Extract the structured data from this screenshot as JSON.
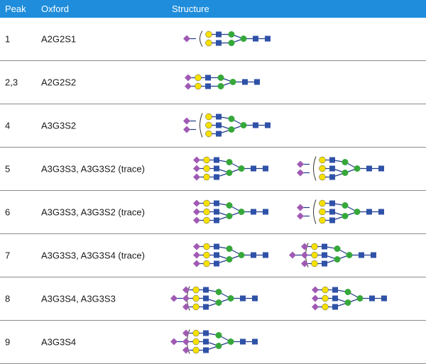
{
  "header": {
    "peak": "Peak",
    "oxford": "Oxford",
    "structure": "Structure"
  },
  "colors": {
    "header_bg": "#1f8ddb",
    "sialic_acid": "#a05ab4",
    "galactose": "#f5e000",
    "glcnac": "#2f52a8",
    "mannose": "#36a83a",
    "divider": "#8c8c8c"
  },
  "legend_icons": [
    "diamond-sialic-acid",
    "circle-galactose",
    "square-glcnac",
    "circle-mannose"
  ],
  "rows": [
    {
      "peak": "1",
      "oxford": "A2G2S1",
      "structures": [
        {
          "antennae": 2,
          "diamonds": [
            false,
            false
          ],
          "floating": true
        }
      ]
    },
    {
      "peak": "2,3",
      "oxford": "A2G2S2",
      "structures": [
        {
          "antennae": 2,
          "diamonds": [
            true,
            true
          ],
          "floating": false
        }
      ]
    },
    {
      "peak": "4",
      "oxford": "A3G3S2",
      "structures": [
        {
          "antennae": 3,
          "diamonds": [
            false,
            false,
            false
          ],
          "floating": 2
        }
      ]
    },
    {
      "peak": "5",
      "oxford": "A3G3S3, A3G3S2 (trace)",
      "structures": [
        {
          "antennae": 3,
          "diamonds": [
            true,
            true,
            true
          ],
          "floating": false
        },
        {
          "antennae": 3,
          "diamonds": [
            false,
            false,
            false
          ],
          "floating": 2
        }
      ]
    },
    {
      "peak": "6",
      "oxford": "A3G3S3, A3G3S2 (trace)",
      "structures": [
        {
          "antennae": 3,
          "diamonds": [
            true,
            true,
            true
          ],
          "floating": false
        },
        {
          "antennae": 3,
          "diamonds": [
            false,
            false,
            false
          ],
          "floating": 2
        }
      ]
    },
    {
      "peak": "7",
      "oxford": "A3G3S3, A3G3S4 (trace)",
      "structures": [
        {
          "antennae": 3,
          "diamonds": [
            true,
            true,
            true
          ],
          "floating": false
        },
        {
          "antennae": 3,
          "diamonds": [
            true,
            true,
            true
          ],
          "floating": 1
        }
      ]
    },
    {
      "peak": "8",
      "oxford": "A3G3S4, A3G3S3",
      "structures": [
        {
          "antennae": 3,
          "diamonds": [
            true,
            true,
            true
          ],
          "floating": 1
        },
        {
          "antennae": 3,
          "diamonds": [
            true,
            true,
            true
          ],
          "floating": false
        }
      ]
    },
    {
      "peak": "9",
      "oxford": "A3G3S4",
      "structures": [
        {
          "antennae": 3,
          "diamonds": [
            true,
            true,
            true
          ],
          "floating": 1
        }
      ]
    }
  ]
}
